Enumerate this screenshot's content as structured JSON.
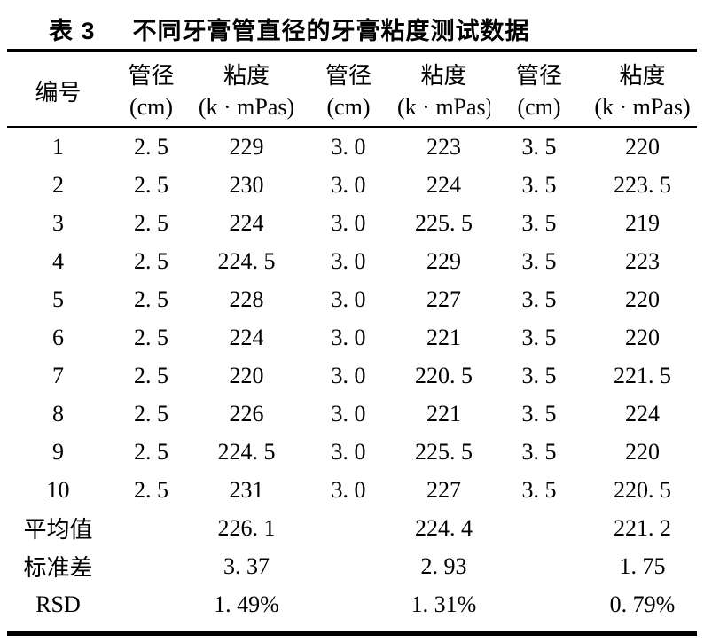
{
  "title": {
    "label": "表 3",
    "text": "不同牙膏管直径的牙膏粘度测试数据"
  },
  "table": {
    "row_header": "编号",
    "column_groups": [
      {
        "diameter_header": "管径",
        "diameter_unit": "(cm)",
        "viscosity_header": "粘度",
        "viscosity_unit": "(k · mPas)"
      },
      {
        "diameter_header": "管径",
        "diameter_unit": "(cm)",
        "viscosity_header": "粘度",
        "viscosity_unit": "(k · mPas)"
      },
      {
        "diameter_header": "管径",
        "diameter_unit": "(cm)",
        "viscosity_header": "粘度",
        "viscosity_unit": "(k · mPas)"
      }
    ],
    "rows": [
      {
        "id": "1",
        "cells": [
          "2. 5",
          "229",
          "3. 0",
          "223",
          "3. 5",
          "220"
        ]
      },
      {
        "id": "2",
        "cells": [
          "2. 5",
          "230",
          "3. 0",
          "224",
          "3. 5",
          "223. 5"
        ]
      },
      {
        "id": "3",
        "cells": [
          "2. 5",
          "224",
          "3. 0",
          "225. 5",
          "3. 5",
          "219"
        ]
      },
      {
        "id": "4",
        "cells": [
          "2. 5",
          "224. 5",
          "3. 0",
          "229",
          "3. 5",
          "223"
        ]
      },
      {
        "id": "5",
        "cells": [
          "2. 5",
          "228",
          "3. 0",
          "227",
          "3. 5",
          "220"
        ]
      },
      {
        "id": "6",
        "cells": [
          "2. 5",
          "224",
          "3. 0",
          "221",
          "3. 5",
          "220"
        ]
      },
      {
        "id": "7",
        "cells": [
          "2. 5",
          "220",
          "3. 0",
          "220. 5",
          "3. 5",
          "221. 5"
        ]
      },
      {
        "id": "8",
        "cells": [
          "2. 5",
          "226",
          "3. 0",
          "221",
          "3. 5",
          "224"
        ]
      },
      {
        "id": "9",
        "cells": [
          "2. 5",
          "224. 5",
          "3. 0",
          "225. 5",
          "3. 5",
          "220"
        ]
      },
      {
        "id": "10",
        "cells": [
          "2. 5",
          "231",
          "3. 0",
          "227",
          "3. 5",
          "220. 5"
        ]
      }
    ],
    "summary_rows": [
      {
        "label": "平均值",
        "values": [
          "226. 1",
          "224. 4",
          "221. 2"
        ]
      },
      {
        "label": "标准差",
        "values": [
          "3. 37",
          "2. 93",
          "1. 75"
        ]
      },
      {
        "label": "RSD",
        "values": [
          "1. 49%",
          "1. 31%",
          "0. 79%"
        ]
      }
    ]
  }
}
